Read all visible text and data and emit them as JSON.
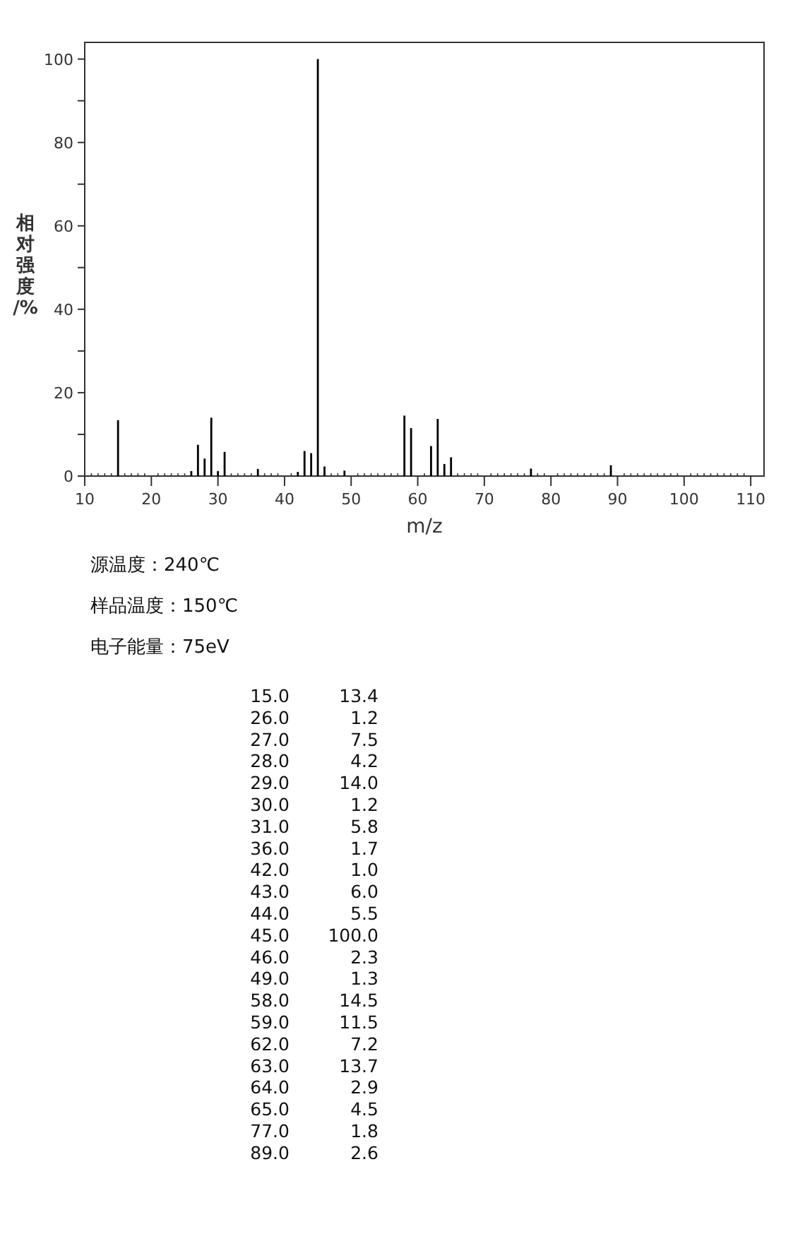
{
  "chart_data": [
    {
      "type": "bar",
      "xlabel": "m/z",
      "ylabel": "相对强度/%",
      "x": [
        15,
        26,
        27,
        28,
        29,
        30,
        31,
        36,
        42,
        43,
        44,
        45,
        46,
        49,
        58,
        59,
        62,
        63,
        64,
        65,
        77,
        89
      ],
      "values": [
        13.4,
        1.2,
        7.5,
        4.2,
        14.0,
        1.2,
        5.8,
        1.7,
        1.0,
        6.0,
        5.5,
        100.0,
        2.3,
        1.3,
        14.5,
        11.5,
        7.2,
        13.7,
        2.9,
        4.5,
        1.8,
        2.6
      ],
      "color": "#000000",
      "xlim": [
        10,
        112
      ],
      "ylim": [
        0,
        104
      ],
      "xticks": [
        10,
        {
          "value": 11,
          "label": null
        },
        {
          "value": 12,
          "label": null
        },
        {
          "value": 13,
          "label": null
        },
        {
          "value": 14,
          "label": null
        },
        {
          "value": 15,
          "label": null
        },
        {
          "value": 16,
          "label": null
        },
        {
          "value": 17,
          "label": null
        },
        {
          "value": 18,
          "label": null
        },
        {
          "value": 19,
          "label": null
        },
        20,
        {
          "value": 21,
          "label": null
        },
        {
          "value": 22,
          "label": null
        },
        {
          "value": 23,
          "label": null
        },
        {
          "value": 24,
          "label": null
        },
        {
          "value": 25,
          "label": null
        },
        {
          "value": 26,
          "label": null
        },
        {
          "value": 27,
          "label": null
        },
        {
          "value": 28,
          "label": null
        },
        {
          "value": 29,
          "label": null
        },
        30,
        {
          "value": 31,
          "label": null
        },
        {
          "value": 32,
          "label": null
        },
        {
          "value": 33,
          "label": null
        },
        {
          "value": 34,
          "label": null
        },
        {
          "value": 35,
          "label": null
        },
        {
          "value": 36,
          "label": null
        },
        {
          "value": 37,
          "label": null
        },
        {
          "value": 38,
          "label": null
        },
        {
          "value": 39,
          "label": null
        },
        40,
        {
          "value": 41,
          "label": null
        },
        {
          "value": 42,
          "label": null
        },
        {
          "value": 43,
          "label": null
        },
        {
          "value": 44,
          "label": null
        },
        {
          "value": 45,
          "label": null
        },
        {
          "value": 46,
          "label": null
        },
        {
          "value": 47,
          "label": null
        },
        {
          "value": 48,
          "label": null
        },
        {
          "value": 49,
          "label": null
        },
        50,
        {
          "value": 51,
          "label": null
        },
        {
          "value": 52,
          "label": null
        },
        {
          "value": 53,
          "label": null
        },
        {
          "value": 54,
          "label": null
        },
        {
          "value": 55,
          "label": null
        },
        {
          "value": 56,
          "label": null
        },
        {
          "value": 57,
          "label": null
        },
        {
          "value": 58,
          "label": null
        },
        {
          "value": 59,
          "label": null
        },
        60,
        {
          "value": 61,
          "label": null
        },
        {
          "value": 62,
          "label": null
        },
        {
          "value": 63,
          "label": null
        },
        {
          "value": 64,
          "label": null
        },
        {
          "value": 65,
          "label": null
        },
        {
          "value": 66,
          "label": null
        },
        {
          "value": 67,
          "label": null
        },
        {
          "value": 68,
          "label": null
        },
        {
          "value": 69,
          "label": null
        },
        70,
        {
          "value": 71,
          "label": null
        },
        {
          "value": 72,
          "label": null
        },
        {
          "value": 73,
          "label": null
        },
        {
          "value": 74,
          "label": null
        },
        {
          "value": 75,
          "label": null
        },
        {
          "value": 76,
          "label": null
        },
        {
          "value": 77,
          "label": null
        },
        {
          "value": 78,
          "label": null
        },
        {
          "value": 79,
          "label": null
        },
        80,
        {
          "value": 81,
          "label": null
        },
        {
          "value": 82,
          "label": null
        },
        {
          "value": 83,
          "label": null
        },
        {
          "value": 84,
          "label": null
        },
        {
          "value": 85,
          "label": null
        },
        {
          "value": 86,
          "label": null
        },
        {
          "value": 87,
          "label": null
        },
        {
          "value": 88,
          "label": null
        },
        {
          "value": 89,
          "label": null
        },
        90,
        {
          "value": 91,
          "label": null
        },
        {
          "value": 92,
          "label": null
        },
        {
          "value": 93,
          "label": null
        },
        {
          "value": 94,
          "label": null
        },
        {
          "value": 95,
          "label": null
        },
        {
          "value": 96,
          "label": null
        },
        {
          "value": 97,
          "label": null
        },
        {
          "value": 98,
          "label": null
        },
        {
          "value": 99,
          "label": null
        },
        100,
        {
          "value": 101,
          "label": null
        },
        {
          "value": 102,
          "label": null
        },
        {
          "value": 103,
          "label": null
        },
        {
          "value": 104,
          "label": null
        },
        {
          "value": 105,
          "label": null
        },
        {
          "value": 106,
          "label": null
        },
        {
          "value": 107,
          "label": null
        },
        {
          "value": 108,
          "label": null
        },
        {
          "value": 109,
          "label": null
        },
        110
      ],
      "yticks": [
        0,
        {
          "value": 10,
          "label": null
        },
        20,
        {
          "value": 30,
          "label": null
        },
        40,
        {
          "value": 50,
          "label": null
        },
        60,
        {
          "value": 70,
          "label": null
        },
        80,
        {
          "value": 90,
          "label": null
        },
        100
      ],
      "annotations": [
        "源温度：240℃",
        "样品温度：150℃",
        "电子能量：75eV"
      ]
    },
    {
      "type": "other",
      "categories": [
        "15.0",
        "26.0",
        "27.0",
        "28.0",
        "29.0",
        "30.0",
        "31.0",
        "36.0",
        "42.0",
        "43.0",
        "44.0",
        "45.0",
        "46.0",
        "49.0",
        "58.0",
        "59.0",
        "62.0",
        "63.0",
        "64.0",
        "65.0",
        "77.0",
        "89.0"
      ],
      "value_labels": [
        "13.4",
        "1.2",
        "7.5",
        "4.2",
        "14.0",
        "1.2",
        "5.8",
        "1.7",
        "1.0",
        "6.0",
        "5.5",
        "100.0",
        "2.3",
        "1.3",
        "14.5",
        "11.5",
        "7.2",
        "13.7",
        "2.9",
        "4.5",
        "1.8",
        "2.6"
      ]
    }
  ]
}
